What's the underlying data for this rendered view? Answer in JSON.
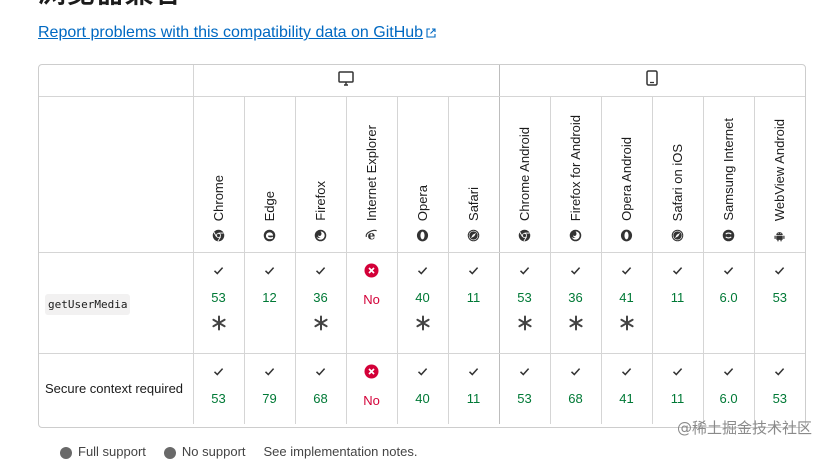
{
  "heading": "浏览器兼容",
  "github_link": "Report problems with this compatibility data on GitHub",
  "platforms": [
    {
      "name": "desktop-icon"
    },
    {
      "name": "mobile-icon"
    }
  ],
  "browsers": [
    {
      "label": "Chrome",
      "icon": "chrome-icon"
    },
    {
      "label": "Edge",
      "icon": "edge-icon"
    },
    {
      "label": "Firefox",
      "icon": "firefox-icon"
    },
    {
      "label": "Internet Explorer",
      "icon": "ie-icon"
    },
    {
      "label": "Opera",
      "icon": "opera-icon"
    },
    {
      "label": "Safari",
      "icon": "safari-icon"
    },
    {
      "label": "Chrome Android",
      "icon": "chrome-icon"
    },
    {
      "label": "Firefox for Android",
      "icon": "firefox-icon"
    },
    {
      "label": "Opera Android",
      "icon": "opera-icon"
    },
    {
      "label": "Safari on iOS",
      "icon": "safari-icon"
    },
    {
      "label": "Samsung Internet",
      "icon": "samsung-icon"
    },
    {
      "label": "WebView Android",
      "icon": "android-icon"
    }
  ],
  "features": [
    {
      "name": "getUserMedia",
      "is_code": true,
      "support": [
        {
          "status": "yes",
          "value": "53",
          "note": true
        },
        {
          "status": "yes",
          "value": "12",
          "note": false
        },
        {
          "status": "yes",
          "value": "36",
          "note": true
        },
        {
          "status": "no",
          "value": "No",
          "note": false
        },
        {
          "status": "yes",
          "value": "40",
          "note": true
        },
        {
          "status": "yes",
          "value": "11",
          "note": false
        },
        {
          "status": "yes",
          "value": "53",
          "note": true
        },
        {
          "status": "yes",
          "value": "36",
          "note": true
        },
        {
          "status": "yes",
          "value": "41",
          "note": true
        },
        {
          "status": "yes",
          "value": "11",
          "note": false
        },
        {
          "status": "yes",
          "value": "6.0",
          "note": false
        },
        {
          "status": "yes",
          "value": "53",
          "note": false
        }
      ]
    },
    {
      "name": "Secure context required",
      "is_code": false,
      "support": [
        {
          "status": "yes",
          "value": "53",
          "note": false
        },
        {
          "status": "yes",
          "value": "79",
          "note": false
        },
        {
          "status": "yes",
          "value": "68",
          "note": false
        },
        {
          "status": "no",
          "value": "No",
          "note": false
        },
        {
          "status": "yes",
          "value": "40",
          "note": false
        },
        {
          "status": "yes",
          "value": "11",
          "note": false
        },
        {
          "status": "yes",
          "value": "53",
          "note": false
        },
        {
          "status": "yes",
          "value": "68",
          "note": false
        },
        {
          "status": "yes",
          "value": "41",
          "note": false
        },
        {
          "status": "yes",
          "value": "11",
          "note": false
        },
        {
          "status": "yes",
          "value": "6.0",
          "note": false
        },
        {
          "status": "yes",
          "value": "53",
          "note": false
        }
      ]
    }
  ],
  "legend": [
    {
      "label": "Full support"
    },
    {
      "label": "No support"
    },
    {
      "label": "See implementation notes."
    }
  ],
  "watermark": "@稀土掘金技术社区",
  "colors": {
    "link": "#0069c2",
    "yes": "#007936",
    "no": "#d30038"
  }
}
